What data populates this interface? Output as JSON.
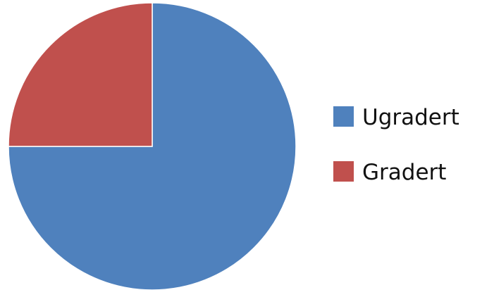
{
  "chart_data": {
    "type": "pie",
    "title": "",
    "slices": [
      {
        "label": "Ugradert",
        "value": 75,
        "color": "#4F81BD"
      },
      {
        "label": "Gradert",
        "value": 25,
        "color": "#C0504D"
      }
    ],
    "start_angle_deg": 0,
    "direction": "clockwise",
    "legend_position": "right"
  }
}
